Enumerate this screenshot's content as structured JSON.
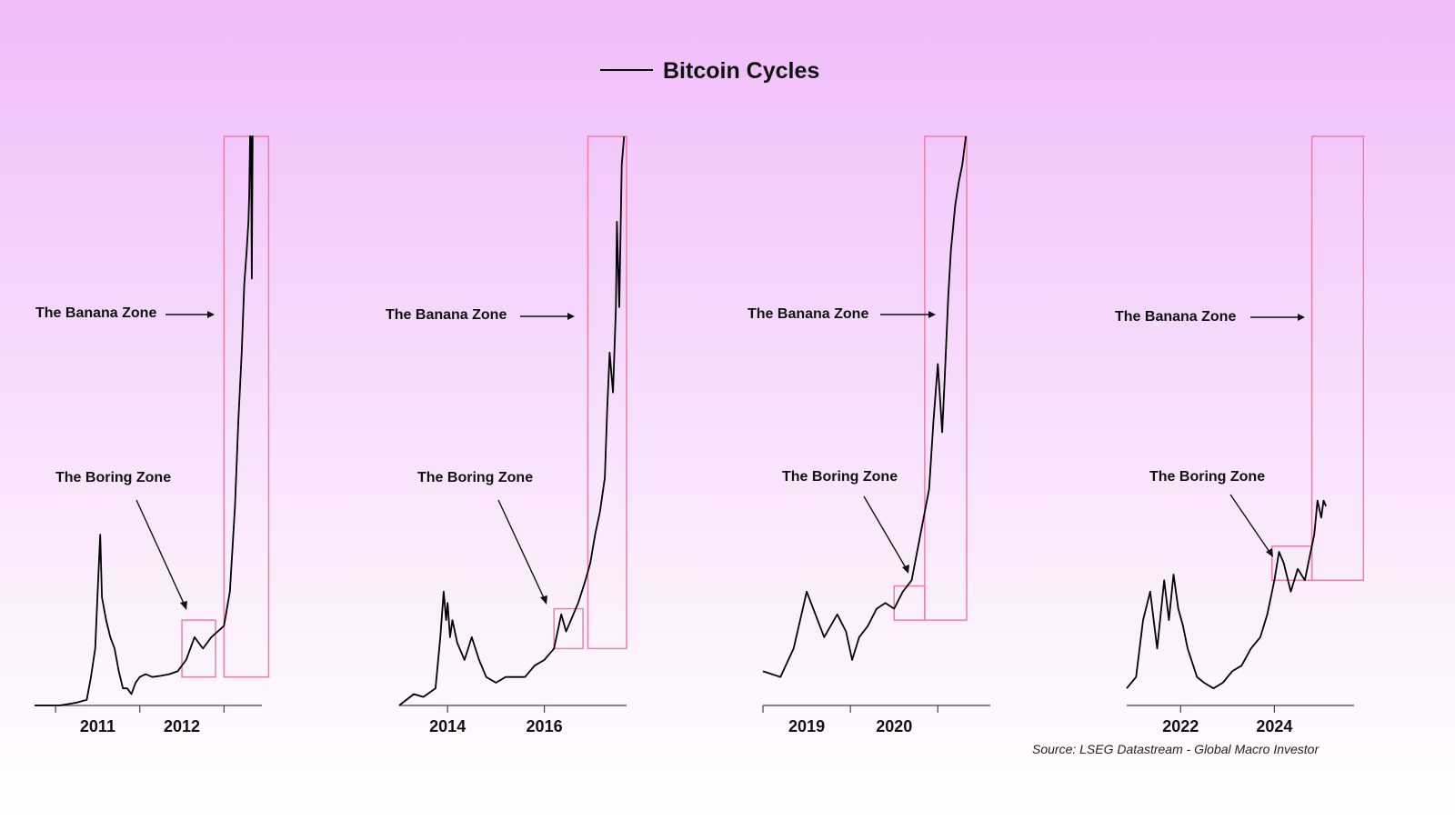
{
  "chart_data": {
    "type": "line",
    "title": "Bitcoin Cycles",
    "legend": {
      "placement": "top-center",
      "entries": [
        "Bitcoin Cycles"
      ]
    },
    "source": "Source: LSEG Datastream - Global Macro Investor",
    "grid": false,
    "y_scale": "relative",
    "panels": [
      {
        "x_range": [
          2010.3,
          2013.0
        ],
        "tick_marks": [
          2010.55,
          2011.55,
          2012.55
        ],
        "tick_labels": [
          {
            "label": "2011",
            "x": 2011.05
          },
          {
            "label": "2012",
            "x": 2012.05
          }
        ],
        "annotations": {
          "banana": "The Banana Zone",
          "boring": "The Boring Zone"
        },
        "boring_zone": {
          "x": [
            2012.05,
            2012.45
          ],
          "y": [
            0.05,
            0.15
          ]
        },
        "banana_zone": {
          "x": [
            2012.55,
            2013.08
          ],
          "y": [
            0.05,
            1.0
          ]
        },
        "series": [
          {
            "x": [
              2010.3,
              2010.6,
              2010.8,
              2010.92,
              2010.97,
              2011.02,
              2011.05,
              2011.08,
              2011.1,
              2011.15,
              2011.2,
              2011.25,
              2011.3,
              2011.35,
              2011.4,
              2011.45,
              2011.5,
              2011.55,
              2011.62,
              2011.7,
              2011.8,
              2011.9,
              2012.0,
              2012.1,
              2012.2,
              2012.3,
              2012.4,
              2012.55,
              2012.62,
              2012.68,
              2012.72,
              2012.76,
              2012.79,
              2012.82,
              2012.84,
              2012.85,
              2012.86,
              2012.87,
              2012.88,
              2012.89,
              2012.9
            ],
            "y": [
              0.0,
              0.0,
              0.005,
              0.01,
              0.05,
              0.1,
              0.2,
              0.3,
              0.19,
              0.15,
              0.12,
              0.1,
              0.06,
              0.03,
              0.03,
              0.02,
              0.04,
              0.05,
              0.055,
              0.05,
              0.052,
              0.055,
              0.06,
              0.08,
              0.12,
              0.1,
              0.12,
              0.14,
              0.2,
              0.35,
              0.5,
              0.62,
              0.74,
              0.8,
              0.85,
              0.9,
              1.0,
              1.0,
              0.75,
              1.0,
              1.0
            ]
          }
        ]
      },
      {
        "x_range": [
          2013.0,
          2017.7
        ],
        "tick_marks": [
          2014.0,
          2016.0
        ],
        "tick_labels": [
          {
            "label": "2014",
            "x": 2014.0
          },
          {
            "label": "2016",
            "x": 2016.0
          }
        ],
        "annotations": {
          "banana": "The Banana Zone",
          "boring": "The Boring Zone"
        },
        "boring_zone": {
          "x": [
            2016.2,
            2016.8
          ],
          "y": [
            0.1,
            0.17
          ]
        },
        "banana_zone": {
          "x": [
            2016.9,
            2017.7
          ],
          "y": [
            0.1,
            1.0
          ]
        },
        "series": [
          {
            "x": [
              2013.0,
              2013.3,
              2013.5,
              2013.75,
              2013.85,
              2013.92,
              2013.97,
              2014.0,
              2014.05,
              2014.1,
              2014.2,
              2014.35,
              2014.5,
              2014.65,
              2014.8,
              2015.0,
              2015.2,
              2015.4,
              2015.6,
              2015.8,
              2016.0,
              2016.2,
              2016.35,
              2016.45,
              2016.55,
              2016.7,
              2016.85,
              2016.95,
              2017.05,
              2017.15,
              2017.25,
              2017.3,
              2017.35,
              2017.42,
              2017.48,
              2017.5,
              2017.55,
              2017.6,
              2017.65
            ],
            "y": [
              0.0,
              0.02,
              0.015,
              0.03,
              0.12,
              0.2,
              0.15,
              0.18,
              0.12,
              0.15,
              0.11,
              0.08,
              0.12,
              0.08,
              0.05,
              0.04,
              0.05,
              0.05,
              0.05,
              0.07,
              0.08,
              0.1,
              0.16,
              0.13,
              0.15,
              0.18,
              0.22,
              0.25,
              0.3,
              0.34,
              0.4,
              0.52,
              0.62,
              0.55,
              0.7,
              0.85,
              0.7,
              0.95,
              1.0
            ]
          }
        ]
      },
      {
        "x_range": [
          2018.6,
          2021.2
        ],
        "tick_marks": [
          2018.6,
          2019.6,
          2020.6
        ],
        "tick_labels": [
          {
            "label": "2019",
            "x": 2019.1
          },
          {
            "label": "2020",
            "x": 2020.1
          }
        ],
        "annotations": {
          "banana": "The Banana Zone",
          "boring": "The Boring Zone"
        },
        "boring_zone": {
          "x": [
            2020.1,
            2020.45
          ],
          "y": [
            0.15,
            0.21
          ]
        },
        "banana_zone": {
          "x": [
            2020.45,
            2020.93
          ],
          "y": [
            0.15,
            1.0
          ]
        },
        "series": [
          {
            "x": [
              2018.6,
              2018.8,
              2018.95,
              2019.1,
              2019.2,
              2019.3,
              2019.45,
              2019.55,
              2019.62,
              2019.7,
              2019.8,
              2019.9,
              2020.0,
              2020.1,
              2020.2,
              2020.3,
              2020.4,
              2020.5,
              2020.55,
              2020.6,
              2020.65,
              2020.68,
              2020.72,
              2020.75,
              2020.8,
              2020.84,
              2020.88,
              2020.92
            ],
            "y": [
              0.06,
              0.05,
              0.1,
              0.2,
              0.16,
              0.12,
              0.16,
              0.13,
              0.08,
              0.12,
              0.14,
              0.17,
              0.18,
              0.17,
              0.2,
              0.22,
              0.3,
              0.38,
              0.5,
              0.6,
              0.48,
              0.58,
              0.72,
              0.8,
              0.88,
              0.92,
              0.95,
              1.0
            ]
          }
        ]
      },
      {
        "x_range": [
          2020.85,
          2025.7
        ],
        "tick_marks": [
          2022.0,
          2024.0
        ],
        "tick_labels": [
          {
            "label": "2022",
            "x": 2022.0
          },
          {
            "label": "2024",
            "x": 2024.0
          }
        ],
        "annotations": {
          "banana": "The Banana Zone",
          "boring": "The Boring Zone"
        },
        "boring_zone": {
          "x": [
            2023.95,
            2024.8
          ],
          "y": [
            0.22,
            0.28
          ]
        },
        "banana_zone": {
          "x": [
            2024.8,
            2025.9
          ],
          "y": [
            0.22,
            1.0
          ]
        },
        "series": [
          {
            "x": [
              2020.85,
              2021.05,
              2021.2,
              2021.35,
              2021.5,
              2021.65,
              2021.75,
              2021.85,
              2021.95,
              2022.05,
              2022.15,
              2022.35,
              2022.5,
              2022.7,
              2022.9,
              2023.1,
              2023.3,
              2023.5,
              2023.7,
              2023.85,
              2024.0,
              2024.1,
              2024.2,
              2024.35,
              2024.5,
              2024.65,
              2024.75,
              2024.85,
              2024.92,
              2025.0,
              2025.05,
              2025.1
            ],
            "y": [
              0.03,
              0.05,
              0.15,
              0.2,
              0.1,
              0.22,
              0.15,
              0.23,
              0.17,
              0.14,
              0.1,
              0.05,
              0.04,
              0.03,
              0.04,
              0.06,
              0.07,
              0.1,
              0.12,
              0.16,
              0.22,
              0.27,
              0.25,
              0.2,
              0.24,
              0.22,
              0.26,
              0.3,
              0.36,
              0.33,
              0.36,
              0.35
            ]
          }
        ]
      }
    ]
  }
}
